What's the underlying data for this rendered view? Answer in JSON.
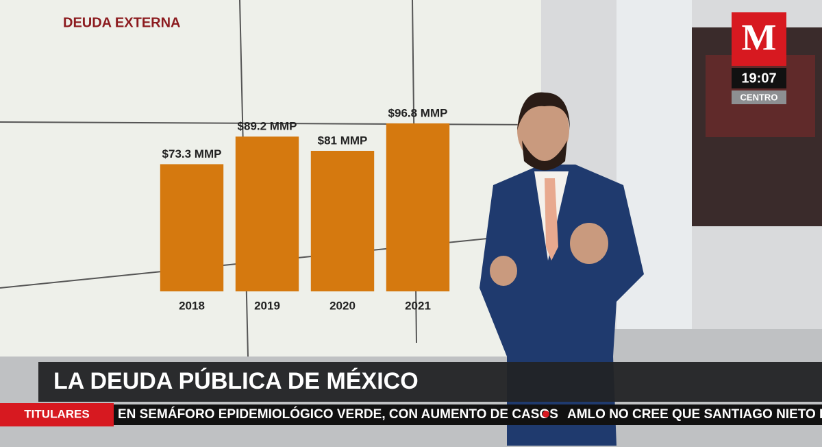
{
  "chart_data": {
    "type": "bar",
    "title": "DEUDA EXTERNA",
    "categories": [
      "2018",
      "2019",
      "2020",
      "2021"
    ],
    "values": [
      73.3,
      89.2,
      81,
      96.8
    ],
    "value_labels": [
      "$73.3 MMP",
      "$89.2 MMP",
      "$81 MMP",
      "$96.8 MMP"
    ],
    "color": "#d5790f"
  },
  "logo": {
    "letter": "M",
    "time": "19:07",
    "zone": "CENTRO"
  },
  "headline": "LA DEUDA PÚBLICA DE MÉXICO",
  "ticker": {
    "label": "TITULARES",
    "items": [
      "EN SEMÁFORO EPIDEMIOLÓGICO VERDE, CON AUMENTO DE CASOS",
      "AMLO NO CREE QUE SANTIAGO NIETO EST"
    ]
  }
}
